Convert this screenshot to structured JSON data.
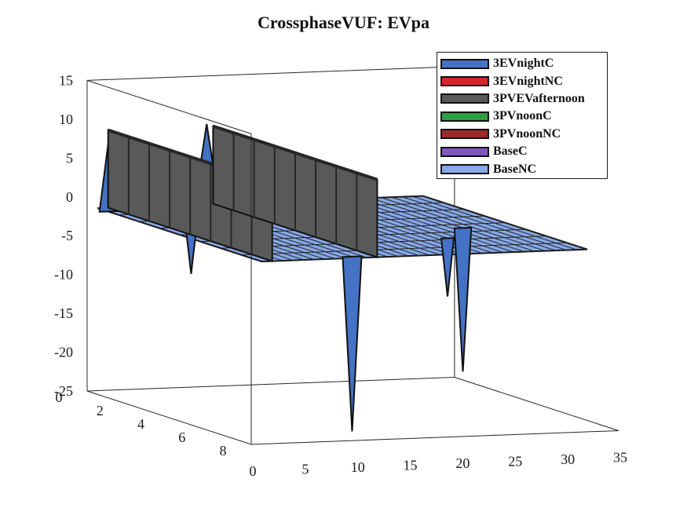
{
  "chart_data": {
    "type": "surface3d",
    "title": "CrossphaseVUF: EVpa",
    "zlim": [
      -25,
      15
    ],
    "zticks": [
      "15",
      "10",
      "5",
      "0",
      "-5",
      "-10",
      "-15",
      "-20",
      "-25"
    ],
    "ylim": [
      0,
      8
    ],
    "yticks": [
      "0",
      "2",
      "4",
      "6",
      "8"
    ],
    "xlim": [
      0,
      35
    ],
    "xticks": [
      "0",
      "5",
      "10",
      "15",
      "20",
      "25",
      "30",
      "35"
    ],
    "grid": false,
    "legend_position": "top-right",
    "series": [
      {
        "name": "3EVnightC",
        "color": "#4472c4",
        "surface": "spikes of about +9 at x = 1 and x = 11, troughs of about -24 at x = 10 and x = 27, otherwise -1.5"
      },
      {
        "name": "3EVnightNC",
        "color": "#d62728"
      },
      {
        "name": "3PVEVafternoon",
        "color": "#595959",
        "surface": "wall of about +8 at x = 2 and x = 12 across all y, otherwise -1.5"
      },
      {
        "name": "3PVnoonC",
        "color": "#2e9e44"
      },
      {
        "name": "3PVnoonNC",
        "color": "#9b2a2a"
      },
      {
        "name": "BaseC",
        "color": "#7e57c2"
      },
      {
        "name": "BaseNC",
        "color": "#86a8e7",
        "surface": "flat at about -1.5"
      }
    ]
  }
}
